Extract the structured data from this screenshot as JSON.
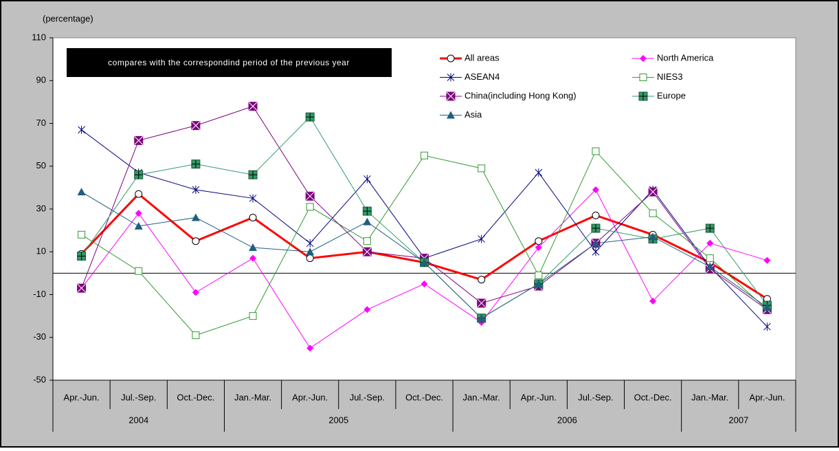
{
  "chart_data": {
    "type": "line",
    "y_label": "(percentage)",
    "annotation": "compares with the correspondind period of the previous year",
    "categories": [
      "Apr.-Jun.",
      "Jul.-Sep.",
      "Oct.-Dec.",
      "Jan.-Mar.",
      "Apr.-Jun.",
      "Jul.-Sep.",
      "Oct.-Dec.",
      "Jan.-Mar.",
      "Apr.-Jun.",
      "Jul.-Sep.",
      "Oct.-Dec.",
      "Jan.-Mar.",
      "Apr.-Jun."
    ],
    "x_groups": [
      {
        "label": "2004",
        "span": 3
      },
      {
        "label": "2005",
        "span": 4
      },
      {
        "label": "2006",
        "span": 4
      },
      {
        "label": "2007",
        "span": 2
      }
    ],
    "ylim": [
      -50,
      110
    ],
    "yticks": [
      -50,
      -30,
      -10,
      10,
      30,
      50,
      70,
      90,
      110
    ],
    "series": [
      {
        "name": "All areas",
        "color": "#ff0000",
        "marker": "circle",
        "width": 3,
        "values": [
          9,
          37,
          15,
          26,
          7,
          10,
          5,
          -3,
          15,
          27,
          18,
          5,
          -12
        ]
      },
      {
        "name": "North America",
        "color": "#ff00ff",
        "marker": "diamond",
        "width": 1,
        "values": [
          -7,
          28,
          -9,
          7,
          -35,
          -17,
          -5,
          -23,
          12,
          39,
          -13,
          14,
          6
        ]
      },
      {
        "name": "ASEAN4",
        "color": "#000080",
        "marker": "star",
        "width": 1,
        "values": [
          67,
          47,
          39,
          35,
          14,
          44,
          7,
          16,
          47,
          10,
          39,
          3,
          -25
        ]
      },
      {
        "name": "NIES3",
        "color": "#339933",
        "marker": "square-open",
        "width": 1,
        "values": [
          18,
          1,
          -29,
          -20,
          31,
          15,
          55,
          49,
          -1,
          57,
          28,
          7,
          -17
        ]
      },
      {
        "name": "China(including Hong Kong)",
        "color": "#800080",
        "marker": "square-x",
        "width": 1,
        "values": [
          -7,
          62,
          69,
          78,
          36,
          10,
          7,
          -14,
          -6,
          14,
          38,
          2,
          -17
        ]
      },
      {
        "name": "Europe",
        "color": "#339966",
        "marker": "square-plus",
        "width": 1,
        "values": [
          8,
          46,
          51,
          46,
          73,
          29,
          5,
          -21,
          -5,
          21,
          16,
          21,
          -15
        ]
      },
      {
        "name": "Asia",
        "color": "#1f5f7f",
        "marker": "triangle",
        "width": 1,
        "values": [
          38,
          22,
          26,
          12,
          10,
          24,
          5,
          -21,
          -5,
          14,
          17,
          3,
          -16
        ]
      }
    ]
  }
}
